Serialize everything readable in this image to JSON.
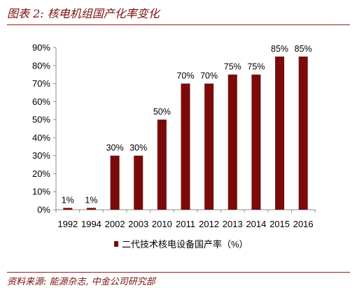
{
  "figure": {
    "title": "图表 2:  核电机组国产化率变化",
    "source": "资料来源:  能源杂志, 中金公司研究部"
  },
  "colors": {
    "bar": "#7b0a0a",
    "title": "#7a0f0f",
    "rule": "#9b1c1c",
    "axis": "#8c8c8c"
  },
  "chart_data": {
    "type": "bar",
    "categories": [
      "1992",
      "1994",
      "2002",
      "2003",
      "2010",
      "2011",
      "2012",
      "2013",
      "2014",
      "2015",
      "2016"
    ],
    "series": [
      {
        "name": "二代技术核电设备国产率（%）",
        "values": [
          1,
          1,
          30,
          30,
          50,
          70,
          70,
          75,
          75,
          85,
          85
        ]
      }
    ],
    "data_labels": [
      "1%",
      "1%",
      "30%",
      "30%",
      "50%",
      "70%",
      "70%",
      "75%",
      "75%",
      "85%",
      "85%"
    ],
    "ylim": [
      0,
      90
    ],
    "yticks": [
      0,
      10,
      20,
      30,
      40,
      50,
      60,
      70,
      80,
      90
    ],
    "ytick_labels": [
      "0%",
      "10%",
      "20%",
      "30%",
      "40%",
      "50%",
      "60%",
      "70%",
      "80%",
      "90%"
    ],
    "xlabel": "",
    "ylabel": "",
    "grid": false,
    "legend": "bottom"
  }
}
